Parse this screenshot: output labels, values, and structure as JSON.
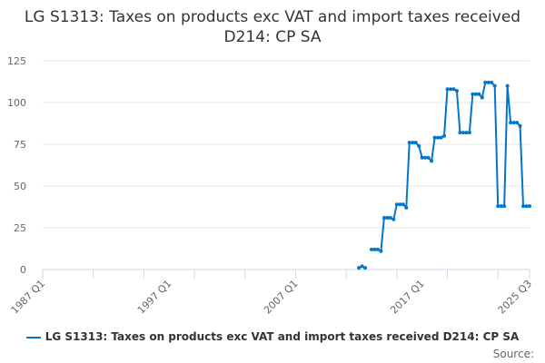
{
  "chart_data": {
    "type": "line",
    "title": "LG S1313: Taxes on products exc VAT and import taxes received D214: CP SA",
    "xlabel": "",
    "ylabel": "",
    "x_range": [
      "1987 Q1",
      "2025 Q3"
    ],
    "x_ticks": [
      "1987 Q1",
      "1997 Q1",
      "2007 Q1",
      "2017 Q1",
      "2025 Q3"
    ],
    "ylim": [
      0,
      125
    ],
    "y_ticks": [
      0,
      25,
      50,
      75,
      100,
      125
    ],
    "grid": true,
    "legend": "bottom",
    "color": "#0077cc",
    "series": [
      {
        "name": "LG S1313: Taxes on products exc VAT and import taxes received D214: CP SA",
        "points": [
          [
            "2012 Q1",
            1
          ],
          [
            "2012 Q2",
            2
          ],
          [
            "2012 Q3",
            1
          ],
          [
            "2012 Q4",
            null
          ],
          [
            "2013 Q1",
            12
          ],
          [
            "2013 Q2",
            12
          ],
          [
            "2013 Q3",
            12
          ],
          [
            "2013 Q4",
            11
          ],
          [
            "2014 Q1",
            31
          ],
          [
            "2014 Q2",
            31
          ],
          [
            "2014 Q3",
            31
          ],
          [
            "2014 Q4",
            30
          ],
          [
            "2015 Q1",
            39
          ],
          [
            "2015 Q2",
            39
          ],
          [
            "2015 Q3",
            39
          ],
          [
            "2015 Q4",
            37
          ],
          [
            "2016 Q1",
            76
          ],
          [
            "2016 Q2",
            76
          ],
          [
            "2016 Q3",
            76
          ],
          [
            "2016 Q4",
            74
          ],
          [
            "2017 Q1",
            67
          ],
          [
            "2017 Q2",
            67
          ],
          [
            "2017 Q3",
            67
          ],
          [
            "2017 Q4",
            65
          ],
          [
            "2018 Q1",
            79
          ],
          [
            "2018 Q2",
            79
          ],
          [
            "2018 Q3",
            79
          ],
          [
            "2018 Q4",
            80
          ],
          [
            "2019 Q1",
            108
          ],
          [
            "2019 Q2",
            108
          ],
          [
            "2019 Q3",
            108
          ],
          [
            "2019 Q4",
            107
          ],
          [
            "2020 Q1",
            82
          ],
          [
            "2020 Q2",
            82
          ],
          [
            "2020 Q3",
            82
          ],
          [
            "2020 Q4",
            82
          ],
          [
            "2021 Q1",
            105
          ],
          [
            "2021 Q2",
            105
          ],
          [
            "2021 Q3",
            105
          ],
          [
            "2021 Q4",
            103
          ],
          [
            "2022 Q1",
            112
          ],
          [
            "2022 Q2",
            112
          ],
          [
            "2022 Q3",
            112
          ],
          [
            "2022 Q4",
            110
          ],
          [
            "2023 Q1",
            38
          ],
          [
            "2023 Q2",
            38
          ],
          [
            "2023 Q3",
            38
          ],
          [
            "2023 Q4",
            110
          ],
          [
            "2024 Q1",
            88
          ],
          [
            "2024 Q2",
            88
          ],
          [
            "2024 Q3",
            88
          ],
          [
            "2024 Q4",
            86
          ],
          [
            "2025 Q1",
            38
          ],
          [
            "2025 Q2",
            38
          ],
          [
            "2025 Q3",
            38
          ]
        ]
      }
    ]
  },
  "source_label": "Source:"
}
